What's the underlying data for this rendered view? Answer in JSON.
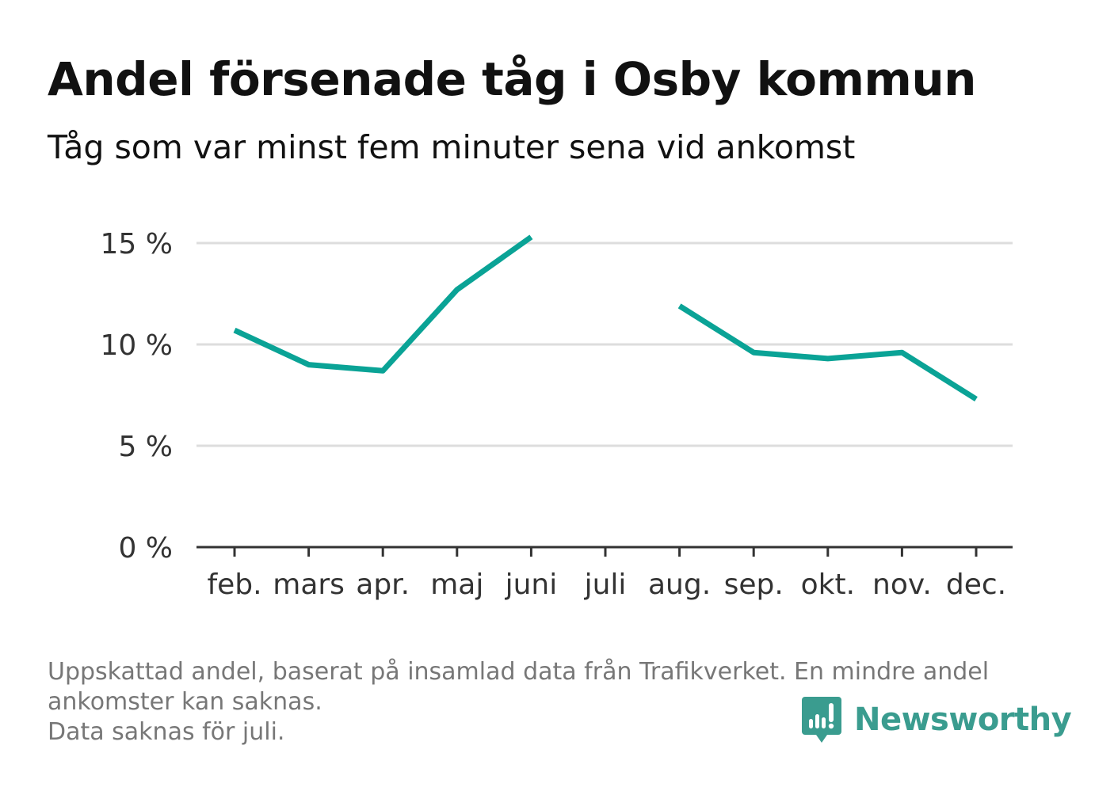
{
  "header": {
    "title": "Andel försenade tåg i Osby kommun",
    "subtitle": "Tåg som var minst fem minuter sena vid ankomst"
  },
  "chart_data": {
    "type": "line",
    "title": "Andel försenade tåg i Osby kommun",
    "subtitle": "Tåg som var minst fem minuter sena vid ankomst",
    "xlabel": "",
    "ylabel": "",
    "categories": [
      "feb.",
      "mars",
      "apr.",
      "maj",
      "juni",
      "juli",
      "aug.",
      "sep.",
      "okt.",
      "nov.",
      "dec."
    ],
    "series": [
      {
        "values": [
          10.7,
          9.0,
          8.7,
          12.7,
          15.3,
          null,
          11.9,
          9.6,
          9.3,
          9.6,
          7.3
        ]
      }
    ],
    "ylim": [
      0,
      15
    ],
    "yticks": [
      0,
      5,
      10,
      15
    ],
    "ytick_labels": [
      "0 %",
      "5 %",
      "10 %",
      "15 %"
    ],
    "grid": true,
    "legend": "none",
    "colors": {
      "line": "#0aa396",
      "grid": "#dddddd",
      "axis": "#333333"
    }
  },
  "footnote": {
    "line1": "Uppskattad andel, baserat på insamlad data från Trafikverket. En mindre andel",
    "line2": "ankomster kan saknas.",
    "line3": "Data saknas för juli."
  },
  "brand": {
    "name": "Newsworthy",
    "icon": "newsworthy-logo-icon",
    "color": "#3a9c8f"
  }
}
